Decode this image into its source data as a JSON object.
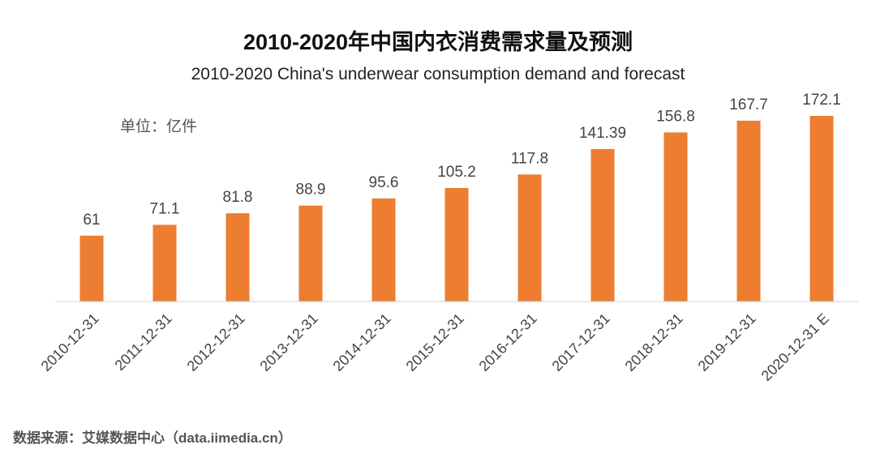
{
  "chart_data": {
    "type": "bar",
    "title": "2010-2020年中国内衣消费需求量及预测",
    "subtitle": "2010-2020 China's underwear consumption demand and forecast",
    "unit": "单位：亿件",
    "categories": [
      "2010-12-31",
      "2011-12-31",
      "2012-12-31",
      "2013-12-31",
      "2014-12-31",
      "2015-12-31",
      "2016-12-31",
      "2017-12-31",
      "2018-12-31",
      "2019-12-31",
      "2020-12-31 E"
    ],
    "values": [
      61,
      71.1,
      81.8,
      88.9,
      95.6,
      105.2,
      117.8,
      141.39,
      156.8,
      167.7,
      172.1
    ],
    "value_labels": [
      "61",
      "71.1",
      "81.8",
      "88.9",
      "95.6",
      "105.2",
      "117.8",
      "141.39",
      "156.8",
      "167.7",
      "172.1"
    ],
    "ylim": [
      0,
      200
    ],
    "grid": false,
    "legend": "none",
    "bar_color": "#ED7D31",
    "source": "数据来源：艾媒数据中心（data.iimedia.cn）"
  }
}
